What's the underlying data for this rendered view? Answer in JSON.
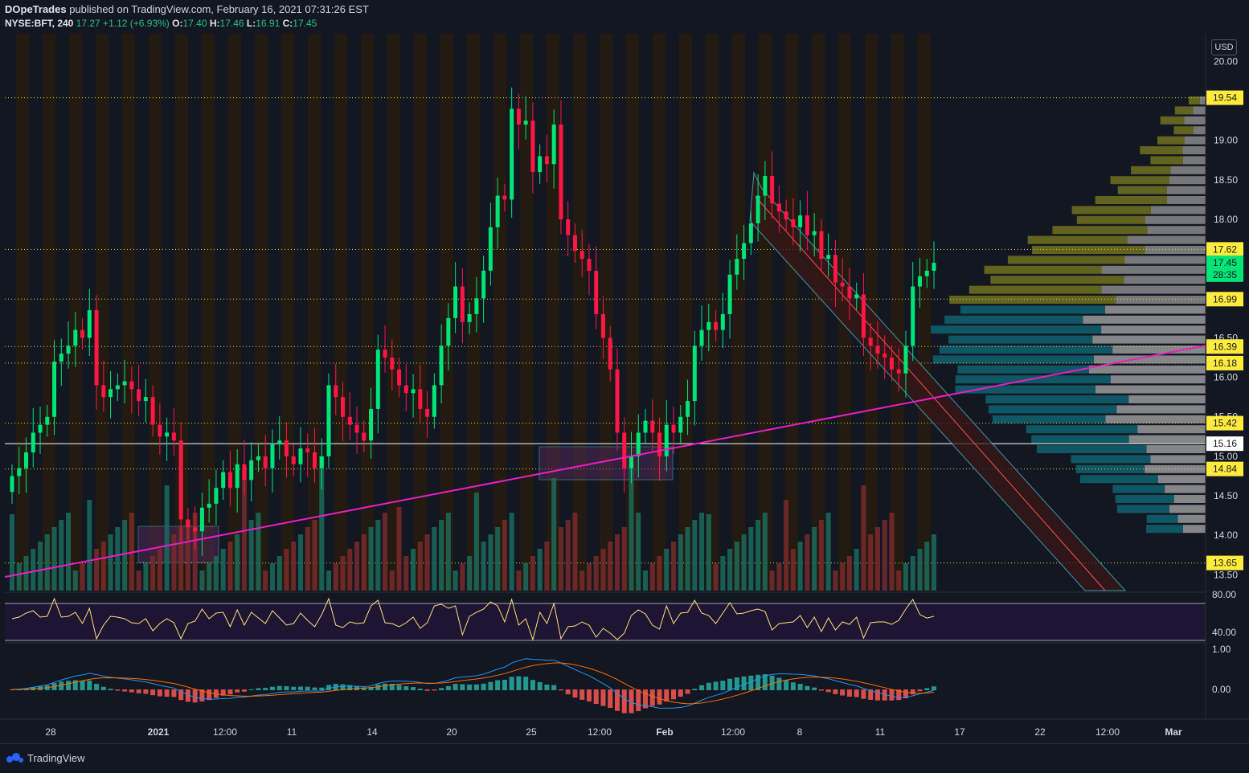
{
  "header": {
    "publisher_line": "DOpeTrades published on TradingView.com, February 16, 2021 07:31:26 EST",
    "publisher": "DOpeTrades",
    "published_rest": " published on TradingView.com, February 16, 2021 07:31:26 EST",
    "symbol": "NYSE:BFT, 240",
    "last": "17.27",
    "change": "+1.12 (+6.93%)",
    "o_label": "O:",
    "o": "17.40",
    "h_label": "H:",
    "h": "17.46",
    "l_label": "L:",
    "l": "16.91",
    "c_label": "C:",
    "c": "17.45"
  },
  "currency": "USD",
  "footer": {
    "brand": "TradingView"
  },
  "colors": {
    "background": "#131722",
    "up": "#00e676",
    "down": "#ff1744",
    "trendline": "#e91ec6",
    "rsi": "#ffe082",
    "channel": "#4dd0e1",
    "label_bg": "#ffeb3b",
    "price_label_bg": "#00e676"
  },
  "chart_data": {
    "type": "candlestick",
    "symbol": "NYSE:BFT",
    "interval": "240",
    "price_axis": {
      "ylim": [
        13.3,
        20.35
      ],
      "ticks": [
        "20.00",
        "19.00",
        "18.50",
        "18.00",
        "16.50",
        "16.00",
        "15.50",
        "15.00",
        "14.50",
        "14.00",
        "13.50"
      ]
    },
    "level_labels": [
      {
        "value": 19.54,
        "text": "19.54",
        "style": "yellow"
      },
      {
        "value": 17.62,
        "text": "17.62",
        "style": "yellow"
      },
      {
        "value": 17.45,
        "text": "17.45",
        "style": "green"
      },
      {
        "value": 17.3,
        "text": "28:35",
        "style": "green"
      },
      {
        "value": 16.99,
        "text": "16.99",
        "style": "yellow"
      },
      {
        "value": 16.39,
        "text": "16.39",
        "style": "yellow"
      },
      {
        "value": 16.18,
        "text": "16.18",
        "style": "yellow"
      },
      {
        "value": 15.42,
        "text": "15.42",
        "style": "yellow"
      },
      {
        "value": 15.16,
        "text": "15.16",
        "style": "white"
      },
      {
        "value": 14.84,
        "text": "14.84",
        "style": "yellow"
      },
      {
        "value": 13.65,
        "text": "13.65",
        "style": "yellow"
      }
    ],
    "x_axis_labels": [
      "28",
      "2021",
      "12:00",
      "11",
      "14",
      "20",
      "25",
      "12:00",
      "Feb",
      "12:00",
      "8",
      "11",
      "17",
      "22",
      "12:00",
      "Mar"
    ],
    "closes": [
      14.75,
      14.85,
      15.05,
      15.3,
      15.4,
      15.5,
      16.2,
      16.3,
      16.4,
      16.6,
      16.5,
      16.85,
      15.9,
      15.75,
      15.85,
      15.9,
      15.95,
      15.85,
      15.7,
      15.75,
      15.4,
      15.25,
      15.3,
      15.2,
      14.2,
      14.1,
      14.05,
      14.35,
      14.4,
      14.6,
      14.8,
      14.6,
      14.9,
      14.7,
      14.95,
      15.0,
      14.85,
      15.15,
      15.2,
      15.0,
      14.9,
      15.1,
      15.05,
      14.85,
      15.0,
      15.9,
      15.75,
      15.5,
      15.4,
      15.3,
      15.2,
      15.6,
      16.35,
      16.25,
      16.1,
      15.9,
      15.8,
      15.85,
      15.6,
      15.5,
      15.9,
      16.4,
      16.75,
      17.15,
      16.7,
      16.8,
      17.0,
      17.35,
      17.9,
      18.3,
      18.25,
      19.4,
      19.2,
      19.25,
      18.6,
      18.8,
      18.7,
      19.2,
      18.0,
      17.8,
      17.6,
      17.5,
      17.35,
      16.8,
      16.5,
      16.1,
      15.3,
      14.85,
      15.0,
      15.3,
      15.45,
      15.3,
      15.0,
      15.4,
      15.3,
      15.5,
      15.7,
      16.4,
      16.6,
      16.7,
      16.6,
      16.8,
      17.3,
      17.5,
      17.7,
      17.95,
      18.3,
      18.55,
      18.2,
      18.1,
      18.0,
      17.9,
      18.05,
      17.8,
      17.85,
      17.5,
      17.55,
      17.2,
      17.15,
      17.0,
      17.05,
      16.5,
      16.4,
      16.3,
      16.25,
      16.1,
      16.05,
      16.4,
      17.15,
      17.28,
      17.35,
      17.45
    ],
    "ohlc_sample_note": "",
    "horizontal_levels": [
      19.54,
      17.62,
      16.99,
      16.39,
      16.18,
      15.42,
      15.16,
      14.84,
      13.65
    ],
    "trendline": {
      "from_price": 13.5,
      "to_price": 16.4
    },
    "rsi": {
      "ticks": [
        "80.00",
        "40.00"
      ]
    },
    "macd": {
      "ticks": [
        "1.00",
        "0.00"
      ]
    }
  }
}
